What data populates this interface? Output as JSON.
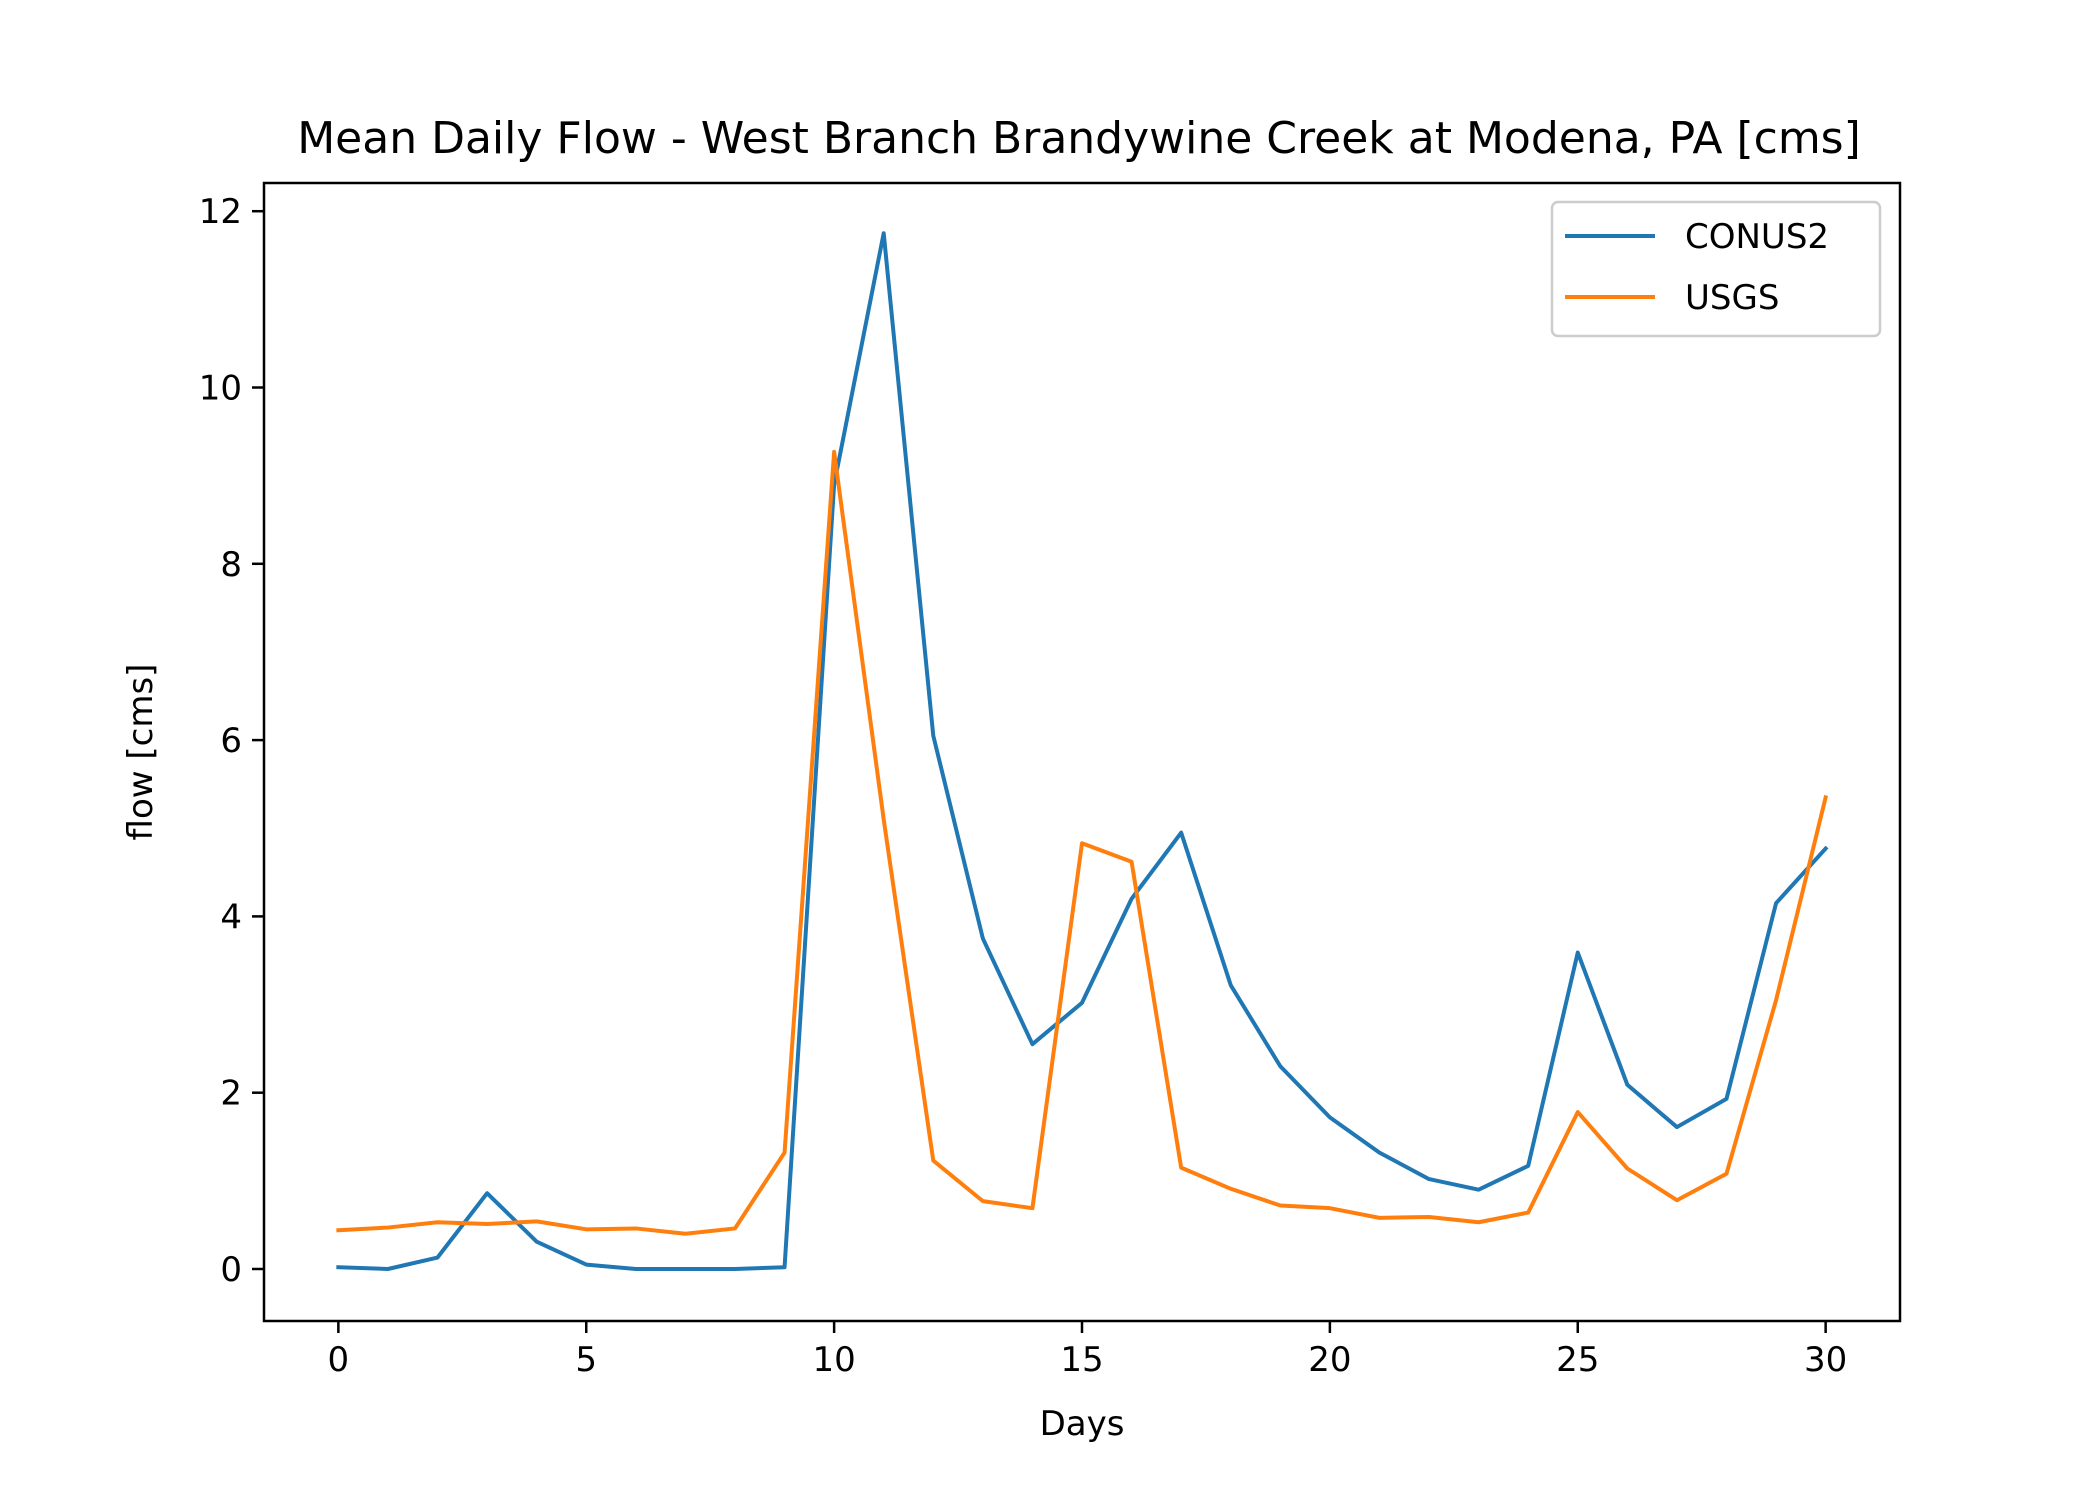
{
  "chart_data": {
    "type": "line",
    "title": "Mean Daily Flow - West Branch Brandywine Creek at Modena, PA [cms]",
    "xlabel": "Days",
    "ylabel": "flow [cms]",
    "xlim": [
      -1.5,
      31.5
    ],
    "ylim": [
      -0.59,
      12.32
    ],
    "xticks": [
      0,
      5,
      10,
      15,
      20,
      25,
      30
    ],
    "yticks": [
      0,
      2,
      4,
      6,
      8,
      10,
      12
    ],
    "grid": false,
    "legend": "top-right",
    "x": [
      0,
      1,
      2,
      3,
      4,
      5,
      6,
      7,
      8,
      9,
      10,
      11,
      12,
      13,
      14,
      15,
      16,
      17,
      18,
      19,
      20,
      21,
      22,
      23,
      24,
      25,
      26,
      27,
      28,
      29,
      30
    ],
    "series": [
      {
        "name": "CONUS2",
        "color": "#1f77b4",
        "values": [
          0.02,
          0.0,
          0.13,
          0.86,
          0.31,
          0.05,
          0.0,
          0.0,
          0.0,
          0.02,
          8.9,
          11.75,
          6.05,
          3.75,
          2.55,
          3.02,
          4.2,
          4.95,
          3.22,
          2.3,
          1.72,
          1.32,
          1.02,
          0.9,
          1.17,
          3.59,
          2.09,
          1.61,
          1.93,
          4.15,
          4.77
        ]
      },
      {
        "name": "USGS",
        "color": "#ff7f0e",
        "values": [
          0.44,
          0.47,
          0.53,
          0.51,
          0.54,
          0.45,
          0.46,
          0.4,
          0.46,
          1.32,
          9.27,
          5.1,
          1.23,
          0.77,
          0.69,
          4.83,
          4.62,
          1.15,
          0.91,
          0.72,
          0.69,
          0.58,
          0.59,
          0.53,
          0.64,
          1.78,
          1.14,
          0.78,
          1.08,
          3.05,
          5.35
        ]
      }
    ]
  }
}
